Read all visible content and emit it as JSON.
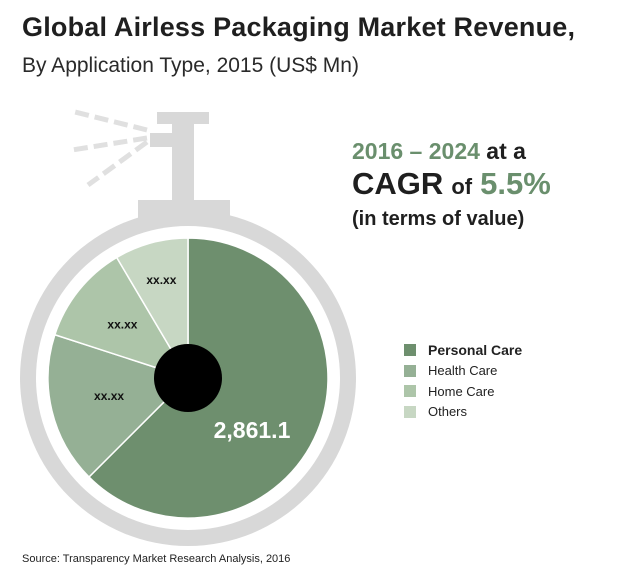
{
  "title": "Global Airless Packaging Market Revenue,",
  "subtitle": "By Application Type, 2015 (US$ Mn)",
  "cagr": {
    "period": "2016 – 2024",
    "at_a": "at a",
    "cagr_label": "CAGR",
    "of": "of",
    "rate": "5.5%",
    "note": "(in terms of value)"
  },
  "source": "Source: Transparency Market Research Analysis, 2016",
  "colors": {
    "personal_care": "#6e8f6e",
    "health_care": "#95b095",
    "home_care": "#adc5a9",
    "others": "#c7d7c3",
    "bottle": "#d8d8d8",
    "hole": "#000000",
    "accent": "#6a8f6d"
  },
  "chart_data": {
    "type": "pie",
    "title": "Global Airless Packaging Market Revenue, By Application Type, 2015 (US$ Mn)",
    "categories": [
      "Personal Care",
      "Health Care",
      "Home Care",
      "Others"
    ],
    "values": [
      2861.1,
      null,
      null,
      null
    ],
    "labels": [
      "2,861.1",
      "xx.xx",
      "xx.xx",
      "xx.xx"
    ],
    "shares_percent": [
      62.5,
      17.5,
      11.5,
      8.5
    ],
    "legend_position": "right"
  }
}
